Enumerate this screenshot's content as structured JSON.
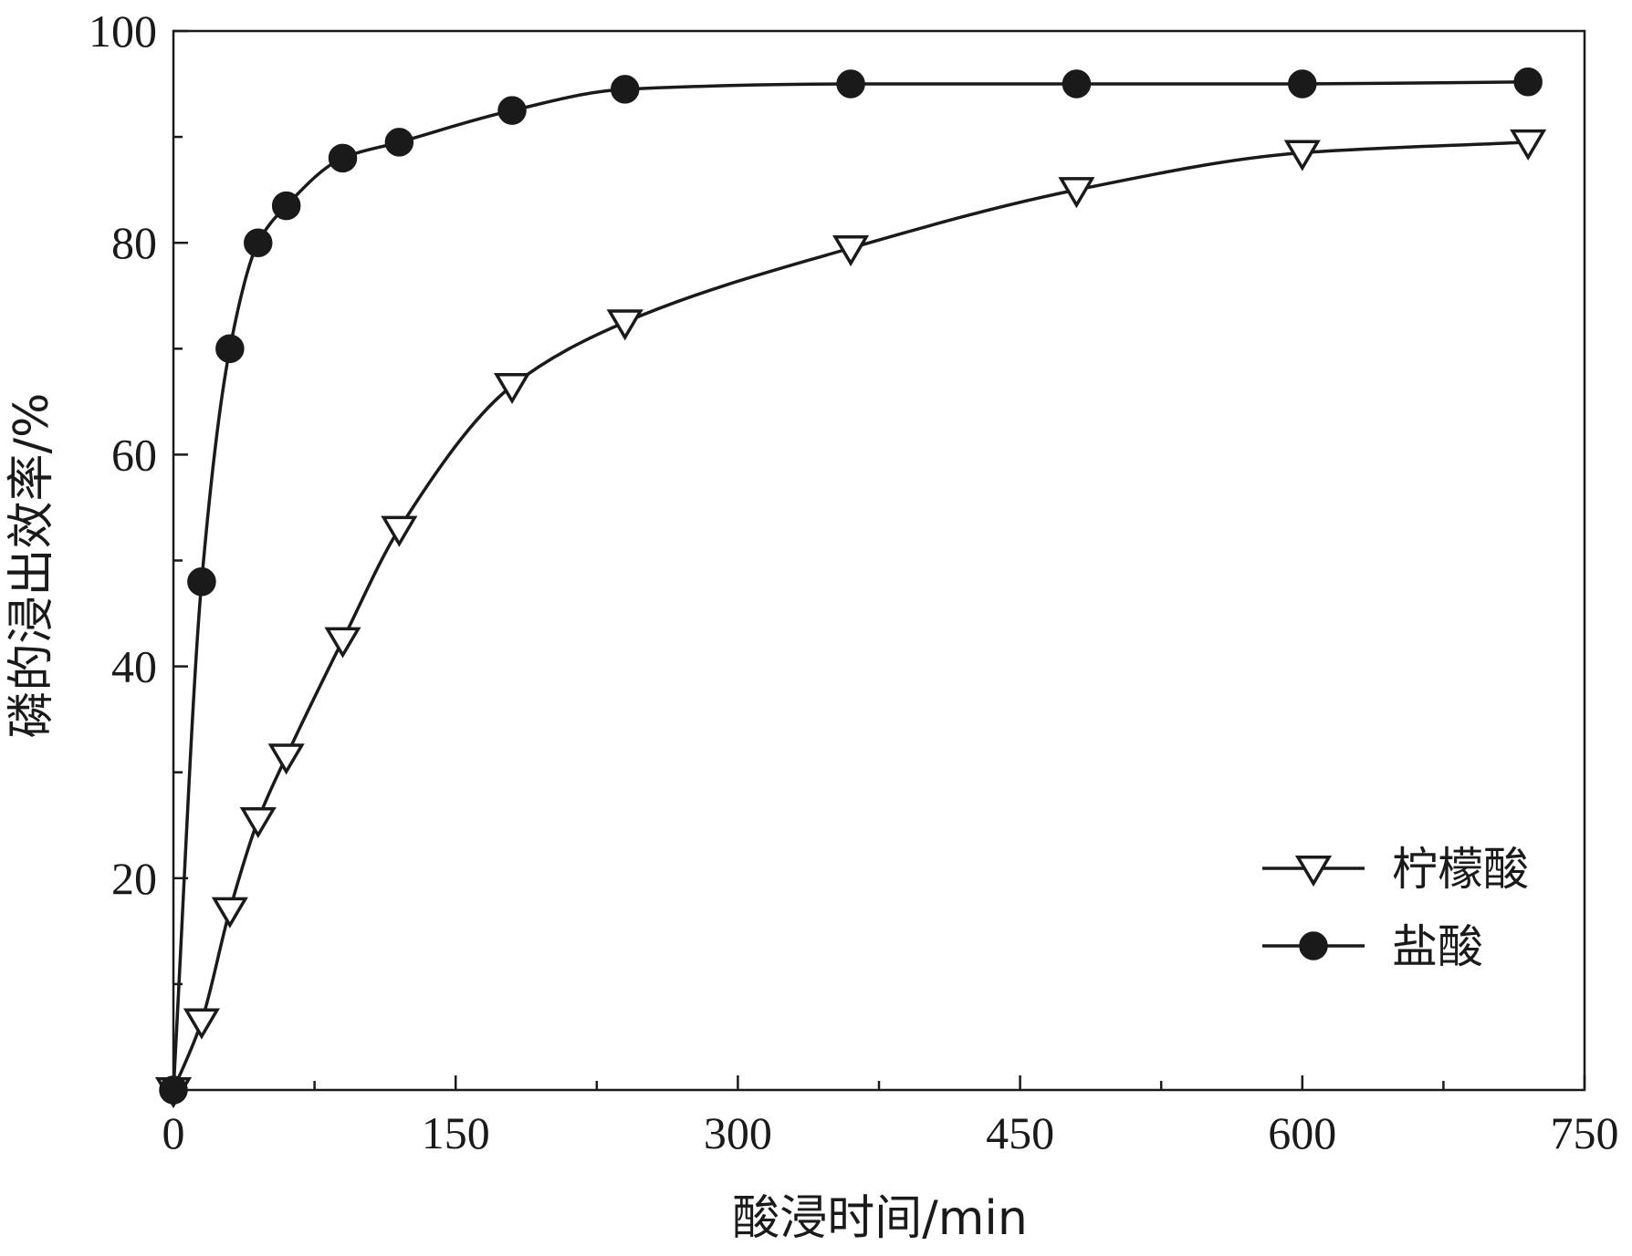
{
  "chart_data": {
    "type": "line",
    "title": "",
    "xlabel": "酸浸时间/min",
    "ylabel": "磷的浸出效率/%",
    "xlim": [
      0,
      750
    ],
    "ylim": [
      0,
      100
    ],
    "xticks": [
      0,
      150,
      300,
      450,
      600,
      750
    ],
    "yticks": [
      20,
      40,
      60,
      80,
      100
    ],
    "x_minor_step": 75,
    "y_minor_step": 10,
    "grid": false,
    "legend_position": "bottom-right",
    "series": [
      {
        "name": "柠檬酸",
        "marker": "triangle-down-open",
        "color": "#1a1a1a",
        "x": [
          0,
          15,
          30,
          45,
          60,
          90,
          120,
          180,
          240,
          360,
          480,
          600,
          720
        ],
        "y": [
          0,
          6.5,
          17,
          25.5,
          31.5,
          42.5,
          53,
          66.5,
          72.5,
          79.5,
          85,
          88.5,
          89.5
        ]
      },
      {
        "name": "盐酸",
        "marker": "circle-filled",
        "color": "#1a1a1a",
        "x": [
          0,
          15,
          30,
          45,
          60,
          90,
          120,
          180,
          240,
          360,
          480,
          600,
          720
        ],
        "y": [
          0,
          48,
          70,
          80,
          83.5,
          88,
          89.5,
          92.5,
          94.5,
          95,
          95,
          95,
          95.2
        ]
      }
    ]
  }
}
